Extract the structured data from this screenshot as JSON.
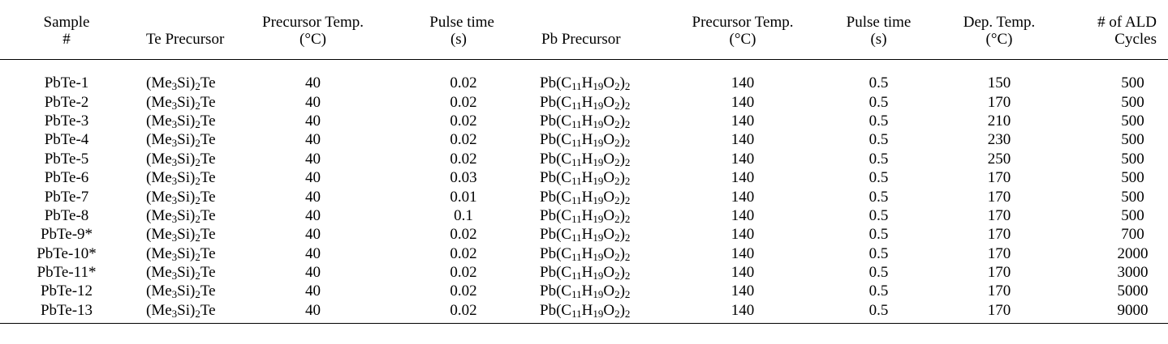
{
  "headers": [
    {
      "line1": "Sample",
      "line2": "#"
    },
    {
      "line1": "",
      "line2": "Te Precursor"
    },
    {
      "line1": "Precursor Temp.",
      "line2": "(°C)"
    },
    {
      "line1": "Pulse time",
      "line2": "(s)"
    },
    {
      "line1": "",
      "line2": "Pb Precursor"
    },
    {
      "line1": "Precursor Temp.",
      "line2": "(°C)"
    },
    {
      "line1": "Pulse time",
      "line2": "(s)"
    },
    {
      "line1": "Dep. Temp.",
      "line2": "(°C)"
    },
    {
      "line1": "# of ALD",
      "line2": "Cycles"
    }
  ],
  "te_precursor": {
    "open": "(Me",
    "sub1": "3",
    "mid": "Si)",
    "sub2": "2",
    "tail": "Te"
  },
  "pb_precursor": {
    "p1": "Pb(C",
    "s1": "11",
    "p2": "H",
    "s2": "19",
    "p3": "O",
    "s3": "2",
    "p4": ")",
    "s4": "2"
  },
  "rows": [
    {
      "sample": "PbTe-1",
      "te_temp": "40",
      "te_pulse": "0.02",
      "pb_temp": "140",
      "pb_pulse": "0.5",
      "dep_temp": "150",
      "cycles": "500"
    },
    {
      "sample": "PbTe-2",
      "te_temp": "40",
      "te_pulse": "0.02",
      "pb_temp": "140",
      "pb_pulse": "0.5",
      "dep_temp": "170",
      "cycles": "500"
    },
    {
      "sample": "PbTe-3",
      "te_temp": "40",
      "te_pulse": "0.02",
      "pb_temp": "140",
      "pb_pulse": "0.5",
      "dep_temp": "210",
      "cycles": "500"
    },
    {
      "sample": "PbTe-4",
      "te_temp": "40",
      "te_pulse": "0.02",
      "pb_temp": "140",
      "pb_pulse": "0.5",
      "dep_temp": "230",
      "cycles": "500"
    },
    {
      "sample": "PbTe-5",
      "te_temp": "40",
      "te_pulse": "0.02",
      "pb_temp": "140",
      "pb_pulse": "0.5",
      "dep_temp": "250",
      "cycles": "500"
    },
    {
      "sample": "PbTe-6",
      "te_temp": "40",
      "te_pulse": "0.03",
      "pb_temp": "140",
      "pb_pulse": "0.5",
      "dep_temp": "170",
      "cycles": "500"
    },
    {
      "sample": "PbTe-7",
      "te_temp": "40",
      "te_pulse": "0.01",
      "pb_temp": "140",
      "pb_pulse": "0.5",
      "dep_temp": "170",
      "cycles": "500"
    },
    {
      "sample": "PbTe-8",
      "te_temp": "40",
      "te_pulse": "0.1",
      "pb_temp": "140",
      "pb_pulse": "0.5",
      "dep_temp": "170",
      "cycles": "500"
    },
    {
      "sample": "PbTe-9*",
      "te_temp": "40",
      "te_pulse": "0.02",
      "pb_temp": "140",
      "pb_pulse": "0.5",
      "dep_temp": "170",
      "cycles": "700"
    },
    {
      "sample": "PbTe-10*",
      "te_temp": "40",
      "te_pulse": "0.02",
      "pb_temp": "140",
      "pb_pulse": "0.5",
      "dep_temp": "170",
      "cycles": "2000"
    },
    {
      "sample": "PbTe-11*",
      "te_temp": "40",
      "te_pulse": "0.02",
      "pb_temp": "140",
      "pb_pulse": "0.5",
      "dep_temp": "170",
      "cycles": "3000"
    },
    {
      "sample": "PbTe-12",
      "te_temp": "40",
      "te_pulse": "0.02",
      "pb_temp": "140",
      "pb_pulse": "0.5",
      "dep_temp": "170",
      "cycles": "5000"
    },
    {
      "sample": "PbTe-13",
      "te_temp": "40",
      "te_pulse": "0.02",
      "pb_temp": "140",
      "pb_pulse": "0.5",
      "dep_temp": "170",
      "cycles": "9000"
    }
  ]
}
